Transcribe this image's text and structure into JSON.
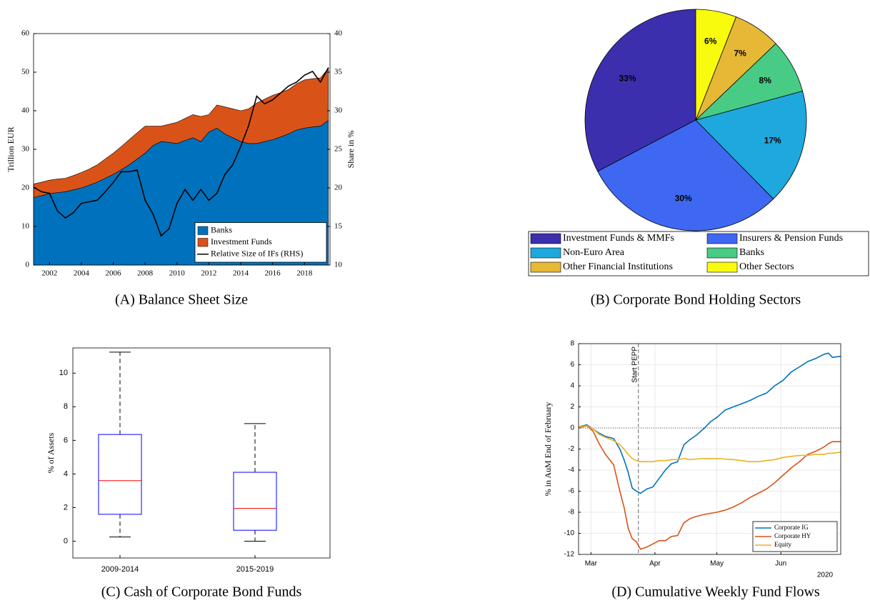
{
  "chart_data": [
    {
      "type": "area",
      "caption": "(A) Balance Sheet Size",
      "ylabel": "Trillion EUR",
      "y2label": "Share in %",
      "xlim": [
        2001,
        2019.6
      ],
      "xticks": [
        2002,
        2004,
        2006,
        2008,
        2010,
        2012,
        2014,
        2016,
        2018
      ],
      "ylim": [
        0,
        60
      ],
      "yticks": [
        0,
        10,
        20,
        30,
        40,
        50,
        60
      ],
      "y2lim": [
        10,
        40
      ],
      "y2ticks": [
        10,
        15,
        20,
        25,
        30,
        35,
        40
      ],
      "legend": "southeast",
      "x": [
        2001,
        2001.5,
        2002,
        2002.5,
        2003,
        2003.5,
        2004,
        2004.5,
        2005,
        2005.5,
        2006,
        2006.5,
        2007,
        2007.5,
        2008,
        2008.5,
        2009,
        2009.5,
        2010,
        2010.5,
        2011,
        2011.5,
        2012,
        2012.5,
        2013,
        2013.5,
        2014,
        2014.5,
        2015,
        2015.5,
        2016,
        2016.5,
        2017,
        2017.5,
        2018,
        2018.5,
        2019,
        2019.5
      ],
      "series": [
        {
          "name": "Banks",
          "type": "area",
          "color": "#0072bd",
          "values": [
            17.5,
            18,
            18.5,
            18.8,
            19,
            19.5,
            20,
            20.7,
            21.5,
            22.5,
            23.5,
            24.7,
            26,
            27.5,
            29,
            31,
            32,
            31.8,
            31.5,
            32.3,
            33,
            32,
            34.5,
            35.5,
            34,
            33,
            32,
            31.5,
            31.5,
            32,
            32.5,
            33.2,
            34,
            35,
            35.5,
            35.8,
            36,
            37.5
          ]
        },
        {
          "name": "Investment Funds",
          "type": "area",
          "color": "#d95319",
          "values": [
            3.5,
            3.5,
            3.5,
            3.5,
            3.5,
            3.7,
            4,
            4.2,
            4.5,
            5,
            5.5,
            6,
            6.5,
            6.8,
            7,
            5,
            4,
            4.7,
            5.5,
            5.7,
            6,
            6.5,
            4.5,
            6,
            7,
            7.5,
            8,
            9,
            10.5,
            11,
            11.5,
            11.5,
            11.5,
            12,
            12.5,
            12.5,
            12.5,
            13.5
          ]
        },
        {
          "name": "Relative Size of IFs (RHS)",
          "type": "line",
          "axis": "y2",
          "color": "#000000",
          "values": [
            20.1,
            19.5,
            19.3,
            17,
            16.1,
            16.8,
            18,
            18.2,
            18.4,
            19.5,
            20.7,
            22.1,
            22.1,
            22.3,
            18.4,
            16.6,
            13.8,
            14.7,
            18,
            19.8,
            18.4,
            19.8,
            18.4,
            19.3,
            21.7,
            23,
            25.4,
            28.1,
            31.9,
            30.9,
            31.4,
            32.3,
            33.2,
            33.7,
            34.6,
            35.1,
            33.7,
            35.6
          ]
        }
      ]
    },
    {
      "type": "pie",
      "caption": "(B) Corporate Bond Holding Sectors",
      "categories": [
        "Investment Funds & MMFs",
        "Insurers & Pension Funds",
        "Non-Euro Area",
        "Banks",
        "Other Financial Institutions",
        "Other Sectors"
      ],
      "values": [
        33,
        30,
        17,
        8,
        7,
        6
      ],
      "value_labels": [
        "33%",
        "30%",
        "17%",
        "8%",
        "7%",
        "6%"
      ],
      "colors": [
        "#3b2fae",
        "#3f68f2",
        "#1ea8de",
        "#48cb84",
        "#e6b836",
        "#f8fb0e"
      ]
    },
    {
      "type": "box",
      "caption": "(C) Cash of Corporate Bond Funds",
      "ylabel": "% of Assets",
      "ylim": [
        -1,
        11.5
      ],
      "yticks": [
        0,
        2,
        4,
        6,
        8,
        10
      ],
      "categories": [
        "2009-2014",
        "2015-2019"
      ],
      "min": [
        0.25,
        0
      ],
      "q1": [
        1.6,
        0.65
      ],
      "median": [
        3.6,
        1.95
      ],
      "q3": [
        6.35,
        4.1
      ],
      "max": [
        11.25,
        7.0
      ]
    },
    {
      "type": "line",
      "caption": "(D) Cumulative Weekly Fund Flows",
      "ylabel": "% in AuM End of February",
      "xlabel": "2020",
      "xlim": [
        55,
        182
      ],
      "xticks": [
        {
          "value": 61,
          "label": "Mar"
        },
        {
          "value": 92,
          "label": "Apr"
        },
        {
          "value": 122,
          "label": "May"
        },
        {
          "value": 153,
          "label": "Jun"
        }
      ],
      "ylim": [
        -12,
        8
      ],
      "yticks": [
        -12,
        -10,
        -8,
        -6,
        -4,
        -2,
        0,
        2,
        4,
        6,
        8
      ],
      "grid": true,
      "hline": 0,
      "legend": "southeast",
      "annotations": [
        {
          "text": "Start PEPP",
          "x": 84
        }
      ],
      "x": [
        55,
        59,
        62,
        65,
        68,
        72,
        75,
        77,
        79,
        81,
        83,
        85,
        88,
        91,
        94,
        97,
        100,
        103,
        106,
        109,
        112,
        116,
        119,
        122,
        126,
        130,
        134,
        138,
        142,
        146,
        150,
        154,
        158,
        162,
        166,
        170,
        174,
        176,
        178,
        182
      ],
      "series": [
        {
          "name": "Corporate IG",
          "color": "#0072bd",
          "values": [
            0.1,
            0.3,
            -0.1,
            -0.5,
            -0.8,
            -1,
            -2,
            -3,
            -4.2,
            -5.7,
            -6,
            -6.2,
            -5.8,
            -5.6,
            -4.8,
            -4,
            -3.4,
            -3.2,
            -1.6,
            -1.1,
            -0.7,
            0,
            0.6,
            1.0,
            1.7,
            2.0,
            2.3,
            2.6,
            3.0,
            3.3,
            4.0,
            4.5,
            5.3,
            5.8,
            6.3,
            6.6,
            7.0,
            7.1,
            6.7,
            6.8
          ]
        },
        {
          "name": "Corporate HY",
          "color": "#d95319",
          "values": [
            0,
            0.2,
            -0.3,
            -1.5,
            -2.5,
            -3.5,
            -6,
            -7.5,
            -9.5,
            -10.5,
            -10.8,
            -11.5,
            -11.3,
            -11,
            -10.7,
            -10.7,
            -10.3,
            -10.2,
            -9,
            -8.6,
            -8.4,
            -8.2,
            -8.1,
            -8.0,
            -7.8,
            -7.5,
            -7.1,
            -6.6,
            -6.2,
            -5.8,
            -5.2,
            -4.5,
            -3.8,
            -3.2,
            -2.5,
            -2.2,
            -1.8,
            -1.5,
            -1.3,
            -1.3
          ]
        },
        {
          "name": "Equity",
          "color": "#edb120",
          "values": [
            0.1,
            0.2,
            -0.1,
            -0.6,
            -0.9,
            -1.2,
            -1.6,
            -2,
            -2.5,
            -2.9,
            -3.1,
            -3.2,
            -3.2,
            -3.2,
            -3.1,
            -3.1,
            -3.0,
            -3.0,
            -2.9,
            -3.0,
            -2.95,
            -2.9,
            -2.9,
            -2.9,
            -2.95,
            -3.0,
            -3.1,
            -3.2,
            -3.2,
            -3.1,
            -3.0,
            -2.8,
            -2.7,
            -2.6,
            -2.6,
            -2.5,
            -2.5,
            -2.4,
            -2.4,
            -2.3
          ]
        }
      ]
    }
  ]
}
